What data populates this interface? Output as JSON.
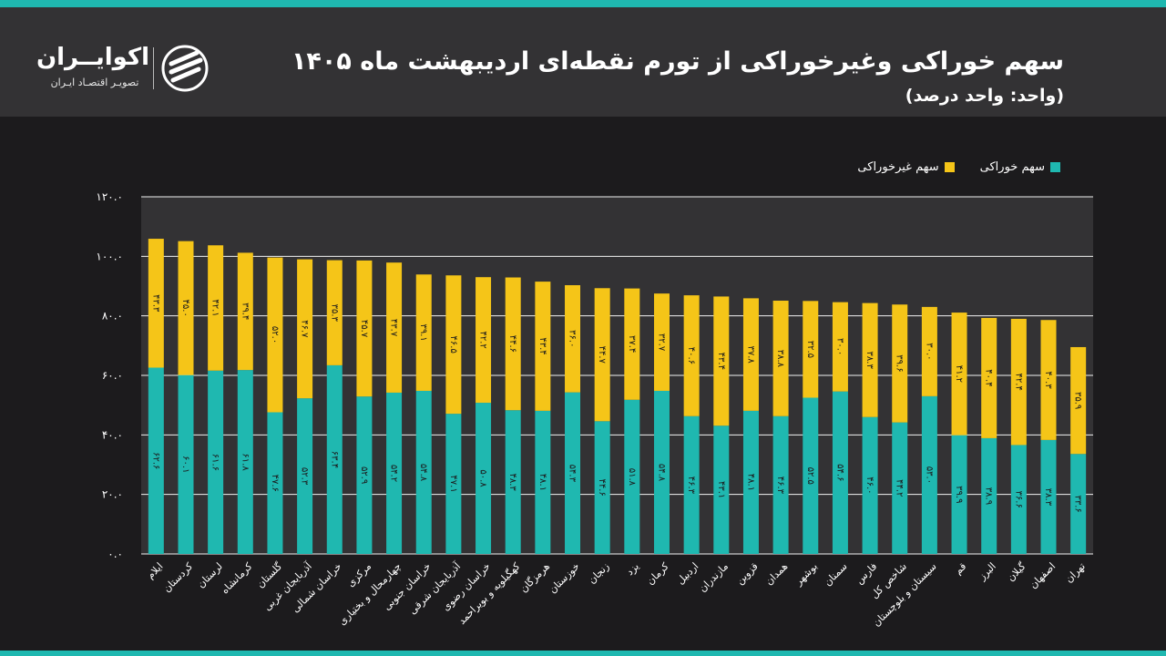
{
  "header": {
    "title": "سهم خوراکی  وغیرخوراکی از تورم نقطه‌ای اردیبهشت ماه ۱۴۰۵",
    "subtitle": "(واحد: واحد درصد)"
  },
  "logo": {
    "name": "اکوایــران",
    "tagline": "تصویـر اقتصـاد ایـران"
  },
  "colors": {
    "food": "#1fb8b0",
    "nonfood": "#f5c518",
    "plot_bg": "#333234",
    "page_bg": "#1c1b1d",
    "accent_strip": "#1fb8b0"
  },
  "chart_data": {
    "type": "bar",
    "stacked": true,
    "legend_position": "top-right",
    "grid": true,
    "ylim": [
      0,
      120
    ],
    "yticks": [
      "۰.۰",
      "۲۰.۰",
      "۴۰.۰",
      "۶۰.۰",
      "۸۰.۰",
      "۱۰۰.۰",
      "۱۲۰.۰"
    ],
    "categories": [
      "ایلام",
      "کردستان",
      "لرستان",
      "کرمانشاه",
      "گلستان",
      "آذربایجان غربی",
      "خراسان شمالی",
      "مرکزی",
      "چهارمحال و بختیاری",
      "خراسان جنوبی",
      "آذربایجان شرقی",
      "خراسان رضوی",
      "کهگیلویه و بویراحمد",
      "هرمزگان",
      "خوزستان",
      "زنجان",
      "یزد",
      "کرمان",
      "اردبیل",
      "مازندران",
      "قزوین",
      "همدان",
      "بوشهر",
      "سمنان",
      "فارس",
      "شاخص کل",
      "سیستان و بلوچستان",
      "قم",
      "البرز",
      "گیلان",
      "اصفهان",
      "تهران"
    ],
    "series": [
      {
        "name": "سهم خوراکی",
        "values": [
          62.6,
          60.1,
          61.6,
          61.8,
          47.6,
          52.3,
          63.4,
          52.9,
          54.2,
          54.8,
          47.1,
          50.8,
          48.3,
          48.1,
          54.3,
          44.6,
          51.8,
          54.8,
          46.3,
          43.1,
          48.1,
          46.3,
          52.5,
          54.6,
          46.0,
          44.2,
          53.0,
          39.9,
          38.9,
          36.6,
          38.3,
          33.6
        ],
        "labels": [
          "۶۲.۶",
          "۶۰.۱",
          "۶۱.۶",
          "۶۱.۸",
          "۴۷.۶",
          "۵۲.۳",
          "۶۳.۴",
          "۵۲.۹",
          "۵۴.۲",
          "۵۴.۸",
          "۴۷.۱",
          "۵۰.۸",
          "۴۸.۳",
          "۴۸.۱",
          "۵۴.۳",
          "۴۴.۶",
          "۵۱.۸",
          "۵۴.۸",
          "۴۶.۳",
          "۴۳.۱",
          "۴۸.۱",
          "۴۶.۳",
          "۵۲.۵",
          "۵۴.۶",
          "۴۶.۰",
          "۴۴.۲",
          "۵۳.۰",
          "۳۹.۹",
          "۳۸.۹",
          "۳۶.۶",
          "۳۸.۳",
          "۳۳.۶"
        ]
      },
      {
        "name": "سهم غیرخوراکی",
        "values": [
          43.3,
          45.0,
          42.1,
          39.4,
          52.0,
          46.7,
          35.3,
          45.7,
          43.7,
          39.1,
          46.5,
          42.2,
          44.6,
          43.4,
          36.0,
          44.7,
          37.4,
          32.7,
          40.6,
          43.4,
          37.8,
          38.8,
          32.5,
          30.0,
          38.3,
          39.6,
          30.0,
          41.2,
          40.4,
          42.4,
          40.3,
          35.9
        ],
        "labels": [
          "۴۳.۳",
          "۴۵.۰",
          "۴۲.۱",
          "۳۹.۴",
          "۵۲.۰",
          "۴۶.۷",
          "۳۵.۳",
          "۴۵.۷",
          "۴۳.۷",
          "۳۹.۱",
          "۴۶.۵",
          "۴۲.۲",
          "۴۴.۶",
          "۴۳.۴",
          "۳۶.۰",
          "۴۴.۷",
          "۳۷.۴",
          "۳۲.۷",
          "۴۰.۶",
          "۴۳.۴",
          "۳۷.۸",
          "۳۸.۸",
          "۳۲.۵",
          "۳۰.۰",
          "۳۸.۳",
          "۳۹.۶",
          "۳۰.۰",
          "۴۱.۲",
          "۴۰.۴",
          "۴۲.۴",
          "۴۰.۳",
          "۳۵.۹"
        ]
      }
    ]
  }
}
